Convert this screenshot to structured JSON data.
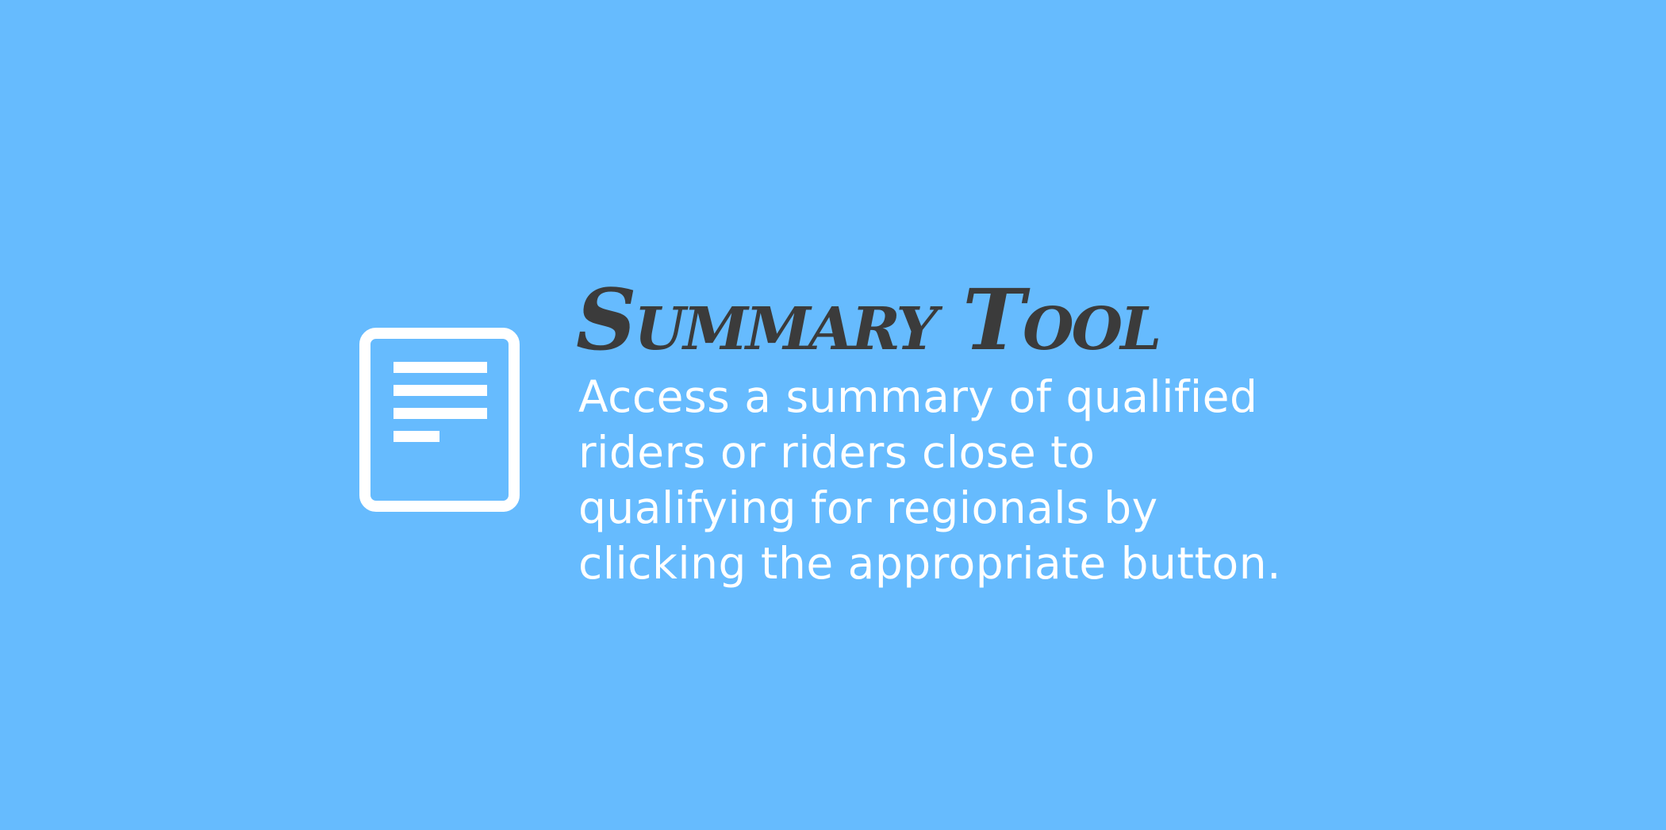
{
  "slide": {
    "background_color": "#66bbfe",
    "icon": "document-icon",
    "title": "Summary Tool",
    "title_color": "#3b3b3b",
    "description": "Access a summary of qualified riders or riders close to qualifying for regionals by clicking the appropriate button.",
    "description_color": "#ffffff"
  }
}
